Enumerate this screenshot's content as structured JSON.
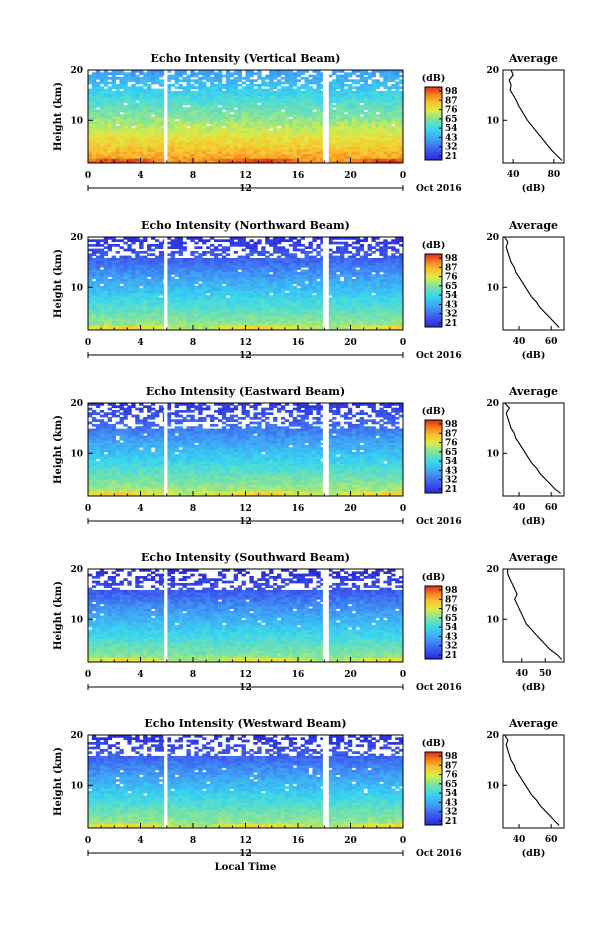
{
  "chart_data": [
    {
      "type": "heatmap",
      "title": "Echo Intensity (Vertical Beam)",
      "ylabel": "Height (km)",
      "x_ticks": [
        "0",
        "4",
        "8",
        "12",
        "16",
        "20",
        "0"
      ],
      "y_ticks": [
        "20",
        "10"
      ],
      "xlim": [
        0,
        24
      ],
      "ylim": [
        1.5,
        20
      ],
      "date_marker_label": "12",
      "date_label": "Oct 2016",
      "gaps": [
        [
          5.8,
          6.05
        ],
        [
          17.9,
          18.35
        ]
      ],
      "colorbar": {
        "unit": "(dB)",
        "ticks": [
          "98",
          "87",
          "76",
          "65",
          "54",
          "43",
          "32",
          "21"
        ]
      },
      "average_profile": {
        "title": "Average",
        "xlabel": "(dB)",
        "x_ticks": [
          "40",
          "80"
        ],
        "y_ticks": [
          "20",
          "10"
        ],
        "xlim": [
          30,
          90
        ],
        "height_km": [
          2,
          3,
          4,
          5,
          6,
          7,
          8,
          9,
          10,
          11,
          12,
          13,
          14,
          15,
          16,
          17,
          18,
          19,
          20
        ],
        "intensity_db": [
          88,
          83,
          78,
          74,
          70,
          66,
          62,
          58,
          54,
          51,
          48,
          45,
          43,
          40,
          37,
          38,
          36,
          40,
          38
        ]
      }
    },
    {
      "type": "heatmap",
      "title": "Echo Intensity (Northward Beam)",
      "ylabel": "Height (km)",
      "x_ticks": [
        "0",
        "4",
        "8",
        "12",
        "16",
        "20",
        "0"
      ],
      "y_ticks": [
        "20",
        "10"
      ],
      "xlim": [
        0,
        24
      ],
      "ylim": [
        1.5,
        20
      ],
      "date_marker_label": "12",
      "date_label": "Oct 2016",
      "gaps": [
        [
          5.8,
          6.05
        ],
        [
          17.9,
          18.35
        ]
      ],
      "colorbar": {
        "unit": "(dB)",
        "ticks": [
          "98",
          "87",
          "76",
          "65",
          "54",
          "43",
          "32",
          "21"
        ]
      },
      "average_profile": {
        "title": "Average",
        "xlabel": "(dB)",
        "x_ticks": [
          "40",
          "60"
        ],
        "y_ticks": [
          "20",
          "10"
        ],
        "xlim": [
          30,
          68
        ],
        "height_km": [
          2,
          3,
          4,
          5,
          6,
          7,
          8,
          9,
          10,
          11,
          12,
          13,
          14,
          15,
          16,
          17,
          18,
          19,
          20
        ],
        "intensity_db": [
          65,
          62,
          59,
          56,
          53,
          51,
          48,
          46,
          44,
          42,
          40,
          38,
          37,
          35,
          34,
          33,
          32,
          33,
          31
        ]
      }
    },
    {
      "type": "heatmap",
      "title": "Echo Intensity (Eastward Beam)",
      "ylabel": "Height (km)",
      "x_ticks": [
        "0",
        "4",
        "8",
        "12",
        "16",
        "20",
        "0"
      ],
      "y_ticks": [
        "20",
        "10"
      ],
      "xlim": [
        0,
        24
      ],
      "ylim": [
        1.5,
        20
      ],
      "date_marker_label": "12",
      "date_label": "Oct 2016",
      "gaps": [
        [
          5.8,
          6.05
        ],
        [
          17.9,
          18.35
        ]
      ],
      "colorbar": {
        "unit": "(dB)",
        "ticks": [
          "98",
          "87",
          "76",
          "65",
          "54",
          "43",
          "32",
          "21"
        ]
      },
      "average_profile": {
        "title": "Average",
        "xlabel": "(dB)",
        "x_ticks": [
          "40",
          "60"
        ],
        "y_ticks": [
          "20",
          "10"
        ],
        "xlim": [
          30,
          68
        ],
        "height_km": [
          2,
          3,
          4,
          5,
          6,
          7,
          8,
          9,
          10,
          11,
          12,
          13,
          14,
          15,
          16,
          17,
          18,
          19,
          20
        ],
        "intensity_db": [
          66,
          62,
          59,
          56,
          53,
          51,
          48,
          46,
          44,
          42,
          40,
          38,
          37,
          35,
          34,
          33,
          32,
          34,
          31
        ]
      }
    },
    {
      "type": "heatmap",
      "title": "Echo Intensity (Southward Beam)",
      "ylabel": "Height (km)",
      "x_ticks": [
        "0",
        "4",
        "8",
        "12",
        "16",
        "20",
        "0"
      ],
      "y_ticks": [
        "20",
        "10"
      ],
      "xlim": [
        0,
        24
      ],
      "ylim": [
        1.5,
        20
      ],
      "date_marker_label": "12",
      "date_label": "Oct 2016",
      "gaps": [
        [
          5.8,
          6.05
        ],
        [
          17.9,
          18.35
        ]
      ],
      "colorbar": {
        "unit": "(dB)",
        "ticks": [
          "98",
          "87",
          "76",
          "65",
          "54",
          "43",
          "32",
          "21"
        ]
      },
      "average_profile": {
        "title": "Average",
        "xlabel": "(dB)",
        "x_ticks": [
          "40",
          "50"
        ],
        "y_ticks": [
          "20",
          "10"
        ],
        "xlim": [
          32,
          58
        ],
        "height_km": [
          2,
          3,
          4,
          5,
          6,
          7,
          8,
          9,
          10,
          11,
          12,
          13,
          14,
          15,
          16,
          17,
          18,
          19,
          20
        ],
        "intensity_db": [
          57,
          55,
          52,
          50,
          48,
          46,
          44,
          42,
          41,
          40,
          39,
          38,
          37,
          38,
          37,
          36,
          35,
          34,
          34
        ]
      }
    },
    {
      "type": "heatmap",
      "title": "Echo Intensity (Westward Beam)",
      "ylabel": "Height (km)",
      "x_ticks": [
        "0",
        "4",
        "8",
        "12",
        "16",
        "20",
        "0"
      ],
      "y_ticks": [
        "20",
        "10"
      ],
      "xlim": [
        0,
        24
      ],
      "ylim": [
        1.5,
        20
      ],
      "date_marker_label": "12",
      "date_label": "Oct 2016",
      "xlabel": "Local Time",
      "gaps": [
        [
          5.8,
          6.05
        ],
        [
          17.9,
          18.35
        ]
      ],
      "colorbar": {
        "unit": "(dB)",
        "ticks": [
          "98",
          "87",
          "76",
          "65",
          "54",
          "43",
          "32",
          "21"
        ]
      },
      "average_profile": {
        "title": "Average",
        "xlabel": "(dB)",
        "x_ticks": [
          "40",
          "60"
        ],
        "y_ticks": [
          "20",
          "10"
        ],
        "xlim": [
          30,
          68
        ],
        "height_km": [
          2,
          3,
          4,
          5,
          6,
          7,
          8,
          9,
          10,
          11,
          12,
          13,
          14,
          15,
          16,
          17,
          18,
          19,
          20
        ],
        "intensity_db": [
          65,
          62,
          59,
          56,
          53,
          51,
          48,
          46,
          44,
          42,
          40,
          38,
          37,
          35,
          34,
          33,
          32,
          33,
          31
        ]
      }
    }
  ]
}
